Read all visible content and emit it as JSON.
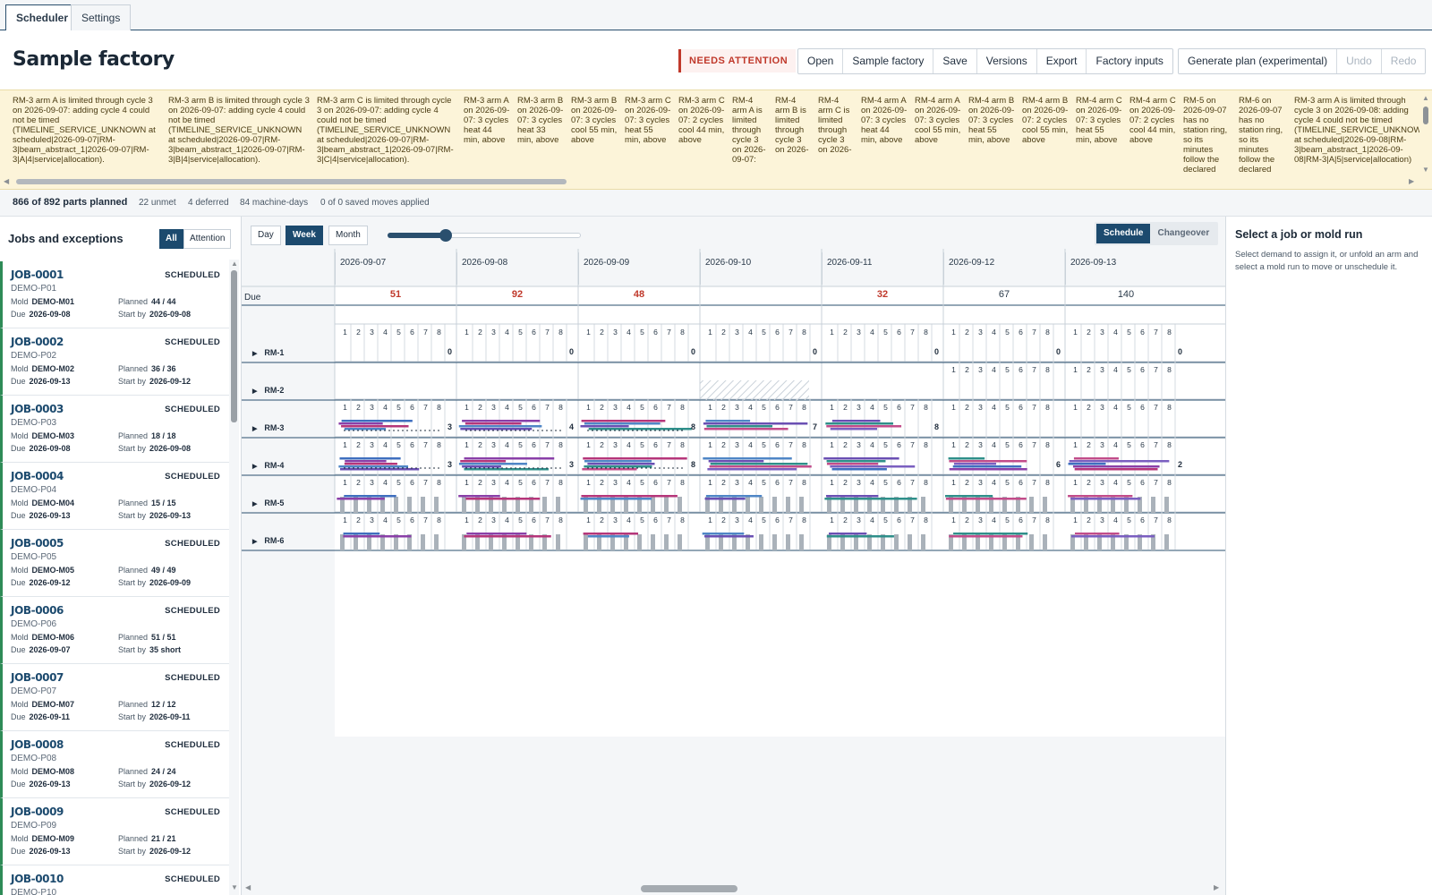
{
  "tabs": [
    {
      "label": "Scheduler",
      "active": true
    },
    {
      "label": "Settings",
      "active": false
    }
  ],
  "header": {
    "title": "Sample factory",
    "attention_badge": "NEEDS ATTENTION",
    "file_buttons": [
      "Open",
      "Sample factory",
      "Save",
      "Versions",
      "Export",
      "Factory inputs"
    ],
    "plan_buttons": [
      "Generate plan (experimental)",
      "Undo",
      "Redo"
    ]
  },
  "warnings": [
    "RM-3 arm A is limited through cycle 3 on 2026-09-07: adding cycle 4 could not be timed (TIMELINE_SERVICE_UNKNOWN at scheduled|2026-09-07|RM-3|beam_abstract_1|2026-09-07|RM-3|A|4|service|allocation).",
    "RM-3 arm B is limited through cycle 3 on 2026-09-07: adding cycle 4 could not be timed (TIMELINE_SERVICE_UNKNOWN at scheduled|2026-09-07|RM-3|beam_abstract_1|2026-09-07|RM-3|B|4|service|allocation).",
    "RM-3 arm C is limited through cycle 3 on 2026-09-07: adding cycle 4 could not be timed (TIMELINE_SERVICE_UNKNOWN at scheduled|2026-09-07|RM-3|beam_abstract_1|2026-09-07|RM-3|C|4|service|allocation).",
    "RM-3 arm A on 2026-09-07: 3 cycles heat 44 min, above",
    "RM-3 arm B on 2026-09-07: 3 cycles heat 33 min, above",
    "RM-3 arm B on 2026-09-07: 3 cycles cool 55 min, above",
    "RM-3 arm C on 2026-09-07: 3 cycles heat 55 min, above",
    "RM-3 arm C on 2026-09-07: 2 cycles cool 44 min, above",
    "RM-4 arm A is limited through cycle 3 on 2026-09-07:",
    "RM-4 arm B is limited through cycle 3 on 2026-",
    "RM-4 arm C is limited through cycle 3 on 2026-",
    "RM-4 arm A on 2026-09-07: 3 cycles heat 44 min, above",
    "RM-4 arm A on 2026-09-07: 3 cycles cool 55 min, above",
    "RM-4 arm B on 2026-09-07: 3 cycles heat 55 min, above",
    "RM-4 arm B on 2026-09-07: 2 cycles cool 55 min, above",
    "RM-4 arm C on 2026-09-07: 3 cycles heat 55 min, above",
    "RM-4 arm C on 2026-09-07: 2 cycles cool 44 min, above",
    "RM-5 on 2026-09-07 has no station ring, so its minutes follow the declared",
    "RM-6 on 2026-09-07 has no station ring, so its minutes follow the declared",
    "RM-3 arm A is limited through cycle 3 on 2026-09-08: adding cycle 4 could not be timed (TIMELINE_SERVICE_UNKNOWN at scheduled|2026-09-08|RM-3|beam_abstract_1|2026-09-08|RM-3|A|5|service|allocation)"
  ],
  "summary": {
    "planned": "866 of 892 parts planned",
    "unmet": "22 unmet",
    "deferred": "4 deferred",
    "machine_days": "84 machine-days",
    "moves": "0 of 0 saved moves applied"
  },
  "jobs_panel": {
    "title": "Jobs and exceptions",
    "filters": [
      "All",
      "Attention"
    ],
    "labels": {
      "mold": "Mold",
      "planned": "Planned",
      "due": "Due",
      "start_by": "Start by"
    },
    "jobs": [
      {
        "id": "JOB-0001",
        "part": "DEMO-P01",
        "status": "SCHEDULED",
        "mold": "DEMO-M01",
        "planned": "44 / 44",
        "due": "2026-09-08",
        "start_by": "2026-09-08"
      },
      {
        "id": "JOB-0002",
        "part": "DEMO-P02",
        "status": "SCHEDULED",
        "mold": "DEMO-M02",
        "planned": "36 / 36",
        "due": "2026-09-13",
        "start_by": "2026-09-12"
      },
      {
        "id": "JOB-0003",
        "part": "DEMO-P03",
        "status": "SCHEDULED",
        "mold": "DEMO-M03",
        "planned": "18 / 18",
        "due": "2026-09-08",
        "start_by": "2026-09-08"
      },
      {
        "id": "JOB-0004",
        "part": "DEMO-P04",
        "status": "SCHEDULED",
        "mold": "DEMO-M04",
        "planned": "15 / 15",
        "due": "2026-09-13",
        "start_by": "2026-09-13"
      },
      {
        "id": "JOB-0005",
        "part": "DEMO-P05",
        "status": "SCHEDULED",
        "mold": "DEMO-M05",
        "planned": "49 / 49",
        "due": "2026-09-12",
        "start_by": "2026-09-09"
      },
      {
        "id": "JOB-0006",
        "part": "DEMO-P06",
        "status": "SCHEDULED",
        "mold": "DEMO-M06",
        "planned": "51 / 51",
        "due": "2026-09-07",
        "start_by": "35 short"
      },
      {
        "id": "JOB-0007",
        "part": "DEMO-P07",
        "status": "SCHEDULED",
        "mold": "DEMO-M07",
        "planned": "12 / 12",
        "due": "2026-09-11",
        "start_by": "2026-09-11"
      },
      {
        "id": "JOB-0008",
        "part": "DEMO-P08",
        "status": "SCHEDULED",
        "mold": "DEMO-M08",
        "planned": "24 / 24",
        "due": "2026-09-13",
        "start_by": "2026-09-12"
      },
      {
        "id": "JOB-0009",
        "part": "DEMO-P09",
        "status": "SCHEDULED",
        "mold": "DEMO-M09",
        "planned": "21 / 21",
        "due": "2026-09-13",
        "start_by": "2026-09-12"
      },
      {
        "id": "JOB-0010",
        "part": "DEMO-P10",
        "status": "SCHEDULED",
        "mold": "",
        "planned": "",
        "due": "",
        "start_by": ""
      }
    ]
  },
  "gantt": {
    "zoom_buttons": [
      {
        "label": "Day",
        "active": false
      },
      {
        "label": "Week",
        "active": true
      },
      {
        "label": "Month",
        "active": false
      }
    ],
    "zoom_level": 0.3,
    "view_toggle": [
      {
        "label": "Schedule",
        "active": true
      },
      {
        "label": "Changeover",
        "active": false
      }
    ],
    "due_label": "Due",
    "days": [
      {
        "date": "2026-09-07",
        "due": "51",
        "due_red": true
      },
      {
        "date": "2026-09-08",
        "due": "92",
        "due_red": true
      },
      {
        "date": "2026-09-09",
        "due": "48",
        "due_red": true
      },
      {
        "date": "2026-09-10",
        "due": "",
        "due_red": false
      },
      {
        "date": "2026-09-11",
        "due": "32",
        "due_red": true
      },
      {
        "date": "2026-09-12",
        "due": "67",
        "due_red": false
      },
      {
        "date": "2026-09-13",
        "due": "140",
        "due_red": false
      }
    ],
    "arm_numbers": [
      "1",
      "2",
      "3",
      "4",
      "5",
      "6",
      "7",
      "8"
    ],
    "machines": [
      {
        "name": "RM-1",
        "counts": [
          "0",
          "0",
          "0",
          "0",
          "0",
          "0",
          "0"
        ]
      },
      {
        "name": "RM-2",
        "counts": [
          "",
          "",
          "",
          "",
          "",
          "",
          ""
        ]
      },
      {
        "name": "RM-3",
        "counts": [
          "3",
          "4",
          "8",
          "7",
          "8",
          "",
          ""
        ]
      },
      {
        "name": "RM-4",
        "counts": [
          "3",
          "3",
          "8",
          "",
          "",
          "6",
          "2"
        ]
      },
      {
        "name": "RM-5",
        "counts": [
          "",
          "",
          "",
          "",
          "",
          "",
          ""
        ]
      },
      {
        "name": "RM-6",
        "counts": [
          "",
          "",
          "",
          "",
          "",
          "",
          ""
        ]
      }
    ]
  },
  "detail": {
    "title": "Select a job or mold run",
    "text": "Select demand to assign it, or unfold an arm and select a mold run to move or unschedule it."
  },
  "colors": {
    "accent": "#1c4a6e",
    "attention": "#c0392b",
    "scheduled_border": "#2e8b57",
    "warn_bg": "#fcf4d9"
  }
}
